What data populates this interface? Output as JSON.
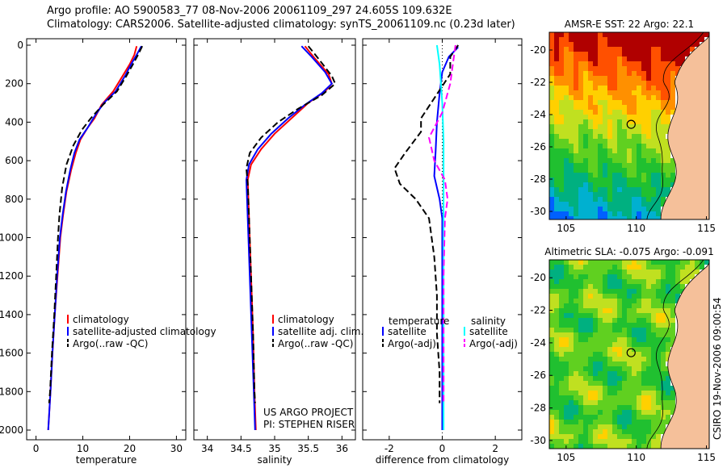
{
  "title_line1": "Argo profile: AO 5900583_77 08-Nov-2006 20061109_297 24.605S 109.632E",
  "title_line2": "Climatology: CARS2006. Satellite-adjusted climatology: synTS_20061109.nc (0.23d later)",
  "side_label": "CSIRO 19-Nov-2006 09:00:54",
  "chart_data": [
    {
      "type": "line",
      "xlabel": "temperature",
      "ylabel": "",
      "xlim": [
        -2,
        32
      ],
      "ylim": [
        2050,
        0
      ],
      "xticks": [
        0,
        10,
        20,
        30
      ],
      "yticks": [
        0,
        200,
        400,
        600,
        800,
        1000,
        1200,
        1400,
        1600,
        1800,
        2000
      ],
      "legend": [
        "climatology",
        "satellite-adjusted climatology",
        "Argo(..raw -QC)"
      ],
      "series": [
        {
          "name": "climatology",
          "color": "#ff0000",
          "dash": "",
          "points": [
            [
              21.5,
              5
            ],
            [
              21,
              50
            ],
            [
              20,
              100
            ],
            [
              18.5,
              160
            ],
            [
              16.5,
              240
            ],
            [
              14,
              310
            ],
            [
              12.5,
              380
            ],
            [
              11,
              430
            ],
            [
              9.5,
              490
            ],
            [
              8.5,
              560
            ],
            [
              7.5,
              650
            ],
            [
              6.5,
              760
            ],
            [
              5.8,
              880
            ],
            [
              5.2,
              1000
            ],
            [
              4.6,
              1200
            ],
            [
              4,
              1400
            ],
            [
              3.5,
              1600
            ],
            [
              3.1,
              1800
            ],
            [
              2.6,
              2000
            ]
          ]
        },
        {
          "name": "satellite-adjusted climatology",
          "color": "#0000ff",
          "dash": "",
          "points": [
            [
              22.5,
              5
            ],
            [
              21.5,
              50
            ],
            [
              20.3,
              100
            ],
            [
              19,
              160
            ],
            [
              17,
              240
            ],
            [
              14.5,
              300
            ],
            [
              12.5,
              370
            ],
            [
              11,
              430
            ],
            [
              9.3,
              490
            ],
            [
              8.2,
              560
            ],
            [
              7.3,
              650
            ],
            [
              6.4,
              760
            ],
            [
              5.7,
              880
            ],
            [
              5.1,
              1000
            ],
            [
              4.5,
              1200
            ],
            [
              4,
              1400
            ],
            [
              3.5,
              1600
            ],
            [
              3.1,
              1800
            ],
            [
              2.6,
              2000
            ]
          ]
        },
        {
          "name": "Argo(..raw -QC)",
          "color": "#000000",
          "dash": "8,4",
          "points": [
            [
              22.7,
              5
            ],
            [
              21.8,
              50
            ],
            [
              20.7,
              100
            ],
            [
              19.3,
              160
            ],
            [
              17.3,
              240
            ],
            [
              14.3,
              310
            ],
            [
              11.7,
              380
            ],
            [
              9.8,
              440
            ],
            [
              8,
              520
            ],
            [
              6.5,
              620
            ],
            [
              5.6,
              740
            ],
            [
              5,
              880
            ],
            [
              4.7,
              1000
            ],
            [
              4.3,
              1200
            ],
            [
              3.9,
              1400
            ],
            [
              3.4,
              1600
            ],
            [
              3,
              1800
            ],
            [
              2.8,
              1860
            ]
          ]
        }
      ]
    },
    {
      "type": "line",
      "xlabel": "salinity",
      "ylabel": "",
      "xlim": [
        33.8,
        36.2
      ],
      "ylim": [
        2050,
        0
      ],
      "xticks": [
        "34",
        "34.5",
        "35",
        "35.5",
        "36"
      ],
      "yticks": [],
      "legend": [
        "climatology",
        "satellite adj. clim.",
        "Argo(..raw -QC)"
      ],
      "annotation": [
        "US ARGO PROJECT",
        "PI: STEPHEN RISER"
      ],
      "series": [
        {
          "name": "climatology",
          "color": "#ff0000",
          "dash": "",
          "points": [
            [
              35.45,
              5
            ],
            [
              35.6,
              70
            ],
            [
              35.8,
              150
            ],
            [
              35.85,
              200
            ],
            [
              35.75,
              240
            ],
            [
              35.5,
              300
            ],
            [
              35.25,
              380
            ],
            [
              35,
              460
            ],
            [
              34.8,
              540
            ],
            [
              34.65,
              620
            ],
            [
              34.6,
              700
            ],
            [
              34.62,
              900
            ],
            [
              34.65,
              1200
            ],
            [
              34.68,
              1500
            ],
            [
              34.7,
              1800
            ],
            [
              34.72,
              2000
            ]
          ]
        },
        {
          "name": "satellite adj. clim.",
          "color": "#0000ff",
          "dash": "",
          "points": [
            [
              35.4,
              5
            ],
            [
              35.55,
              60
            ],
            [
              35.75,
              140
            ],
            [
              35.85,
              200
            ],
            [
              35.7,
              250
            ],
            [
              35.45,
              310
            ],
            [
              35.2,
              380
            ],
            [
              34.95,
              460
            ],
            [
              34.75,
              540
            ],
            [
              34.62,
              620
            ],
            [
              34.58,
              700
            ],
            [
              34.6,
              900
            ],
            [
              34.63,
              1200
            ],
            [
              34.66,
              1500
            ],
            [
              34.69,
              1800
            ],
            [
              34.71,
              2000
            ]
          ]
        },
        {
          "name": "Argo(..raw -QC)",
          "color": "#000000",
          "dash": "8,4",
          "points": [
            [
              35.5,
              5
            ],
            [
              35.65,
              70
            ],
            [
              35.85,
              160
            ],
            [
              35.9,
              200
            ],
            [
              35.7,
              260
            ],
            [
              35.35,
              330
            ],
            [
              35.05,
              400
            ],
            [
              34.8,
              480
            ],
            [
              34.63,
              560
            ],
            [
              34.58,
              640
            ],
            [
              34.6,
              720
            ],
            [
              34.62,
              900
            ],
            [
              34.65,
              1200
            ],
            [
              34.68,
              1500
            ],
            [
              34.7,
              1800
            ],
            [
              34.71,
              1860
            ]
          ]
        }
      ]
    },
    {
      "type": "line",
      "xlabel": "difference from climatology",
      "ylabel": "",
      "xlim": [
        -3,
        3
      ],
      "ylim": [
        2050,
        0
      ],
      "xticks": [
        "-2",
        "0",
        "2"
      ],
      "yticks": [],
      "legend_left_title": "temperature",
      "legend_left": [
        "satellite",
        "Argo(-adj)"
      ],
      "legend_right_title": "salinity",
      "legend_right": [
        "satellite",
        "Argo(-adj)"
      ],
      "series": [
        {
          "name": "temperature satellite",
          "color": "#0000ff",
          "dash": "",
          "points": [
            [
              0.6,
              10
            ],
            [
              0.25,
              60
            ],
            [
              0,
              140
            ],
            [
              -0.1,
              250
            ],
            [
              -0.2,
              400
            ],
            [
              -0.25,
              550
            ],
            [
              -0.3,
              680
            ],
            [
              -0.1,
              800
            ],
            [
              0,
              900
            ],
            [
              0,
              1200
            ],
            [
              0,
              1600
            ],
            [
              0,
              2000
            ]
          ]
        },
        {
          "name": "temperature Argo(-adj)",
          "color": "#000000",
          "dash": "8,4",
          "points": [
            [
              0.6,
              0
            ],
            [
              0.3,
              60
            ],
            [
              0.3,
              150
            ],
            [
              -0.8,
              380
            ],
            [
              -0.8,
              450
            ],
            [
              -1.4,
              560
            ],
            [
              -1.8,
              640
            ],
            [
              -1.6,
              720
            ],
            [
              -1,
              800
            ],
            [
              -0.5,
              900
            ],
            [
              -0.3,
              1100
            ],
            [
              -0.2,
              1300
            ],
            [
              -0.2,
              1500
            ],
            [
              -0.1,
              1700
            ],
            [
              -0.1,
              1860
            ]
          ]
        },
        {
          "name": "salinity satellite",
          "color": "#00ffff",
          "dash": "",
          "points": [
            [
              -0.2,
              0
            ],
            [
              -0.1,
              100
            ],
            [
              0,
              300
            ],
            [
              0.05,
              500
            ],
            [
              0.05,
              800
            ],
            [
              0.05,
              1200
            ],
            [
              0.05,
              1600
            ],
            [
              0.05,
              2000
            ]
          ]
        },
        {
          "name": "salinity Argo(-adj)",
          "color": "#ff00ff",
          "dash": "8,4",
          "points": [
            [
              0.5,
              0
            ],
            [
              0.4,
              100
            ],
            [
              0.3,
              200
            ],
            [
              0,
              350
            ],
            [
              -0.5,
              480
            ],
            [
              -0.3,
              600
            ],
            [
              0.1,
              700
            ],
            [
              0.2,
              800
            ],
            [
              0.1,
              900
            ],
            [
              0.05,
              1200
            ],
            [
              0.05,
              1500
            ],
            [
              0.05,
              1860
            ]
          ]
        }
      ]
    },
    {
      "type": "heatmap",
      "title": "AMSR-E SST: 22 Argo: 22.1",
      "xlim": [
        103.8,
        115.2
      ],
      "ylim": [
        -30.5,
        -18.9
      ],
      "xticks": [
        "105",
        "110",
        "115"
      ],
      "yticks": [
        "-20",
        "-22",
        "-24",
        "-26",
        "-28",
        "-30"
      ],
      "marker": [
        109.632,
        -24.605
      ],
      "palette": [
        "#0060ff",
        "#00b0d0",
        "#00b080",
        "#20c030",
        "#60d020",
        "#c0e020",
        "#ffd000",
        "#ff9000",
        "#ff5000",
        "#b00000"
      ],
      "land_color": "#f5c09a"
    },
    {
      "type": "heatmap",
      "title": "Altimetric SLA: -0.075 Argo: -0.091",
      "xlim": [
        103.8,
        115.2
      ],
      "ylim": [
        -30.5,
        -18.9
      ],
      "xticks": [
        "105",
        "110",
        "115"
      ],
      "yticks": [
        "-20",
        "-22",
        "-24",
        "-26",
        "-28",
        "-30"
      ],
      "marker": [
        109.632,
        -24.605
      ],
      "palette": [
        "#0060ff",
        "#00b0d0",
        "#00b080",
        "#20c030",
        "#60d020",
        "#c0e020",
        "#ffd000",
        "#ff9000",
        "#ff5000",
        "#b00000"
      ],
      "land_color": "#f5c09a"
    }
  ]
}
